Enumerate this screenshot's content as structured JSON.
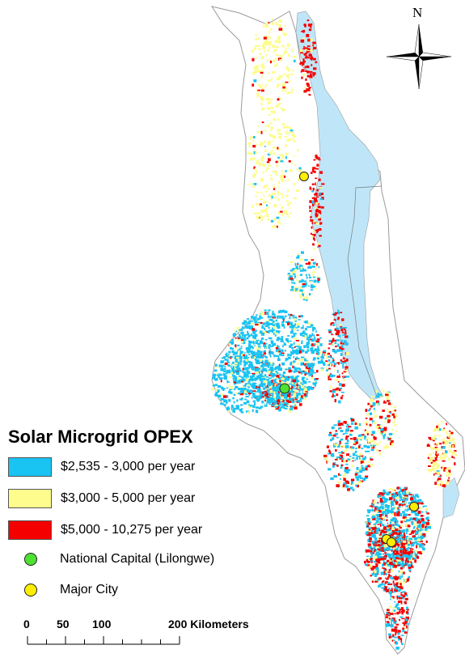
{
  "legend": {
    "title": "Solar Microgrid OPEX",
    "items": [
      {
        "label": "$2,535 - 3,000 per year",
        "color": "#19c3f2",
        "kind": "swatch"
      },
      {
        "label": "$3,000 - 5,000 per year",
        "color": "#fdfc8c",
        "kind": "swatch"
      },
      {
        "label": "$5,000 - 10,275 per year",
        "color": "#f40000",
        "kind": "swatch"
      },
      {
        "label": "National Capital (Lilongwe)",
        "color": "#4ee033",
        "kind": "dot"
      },
      {
        "label": "Major City",
        "color": "#ffee00",
        "kind": "dot"
      }
    ]
  },
  "scale_bar": {
    "ticks": [
      "0",
      "50",
      "100",
      "200 Kilometers"
    ]
  },
  "north_arrow": {
    "label": "N"
  },
  "colors": {
    "lake": "#bfe6f8",
    "country_outline": "#9a9a9a"
  }
}
